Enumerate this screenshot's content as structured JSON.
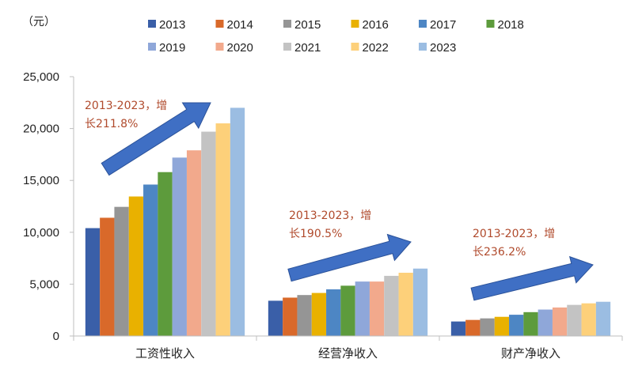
{
  "chart_data": {
    "type": "bar",
    "unit_label": "（元）",
    "categories": [
      "工资性收入",
      "经营净收入",
      "财产净收入"
    ],
    "series": [
      {
        "name": "2013",
        "color": "#3a5fa8",
        "values": [
          10400,
          3400,
          1400
        ]
      },
      {
        "name": "2014",
        "color": "#d9692a",
        "values": [
          11400,
          3700,
          1550
        ]
      },
      {
        "name": "2015",
        "color": "#959595",
        "values": [
          12450,
          3950,
          1700
        ]
      },
      {
        "name": "2016",
        "color": "#e9b100",
        "values": [
          13450,
          4150,
          1850
        ]
      },
      {
        "name": "2017",
        "color": "#4d86c4",
        "values": [
          14600,
          4500,
          2050
        ]
      },
      {
        "name": "2018",
        "color": "#5d9b3c",
        "values": [
          15800,
          4850,
          2300
        ]
      },
      {
        "name": "2019",
        "color": "#8fa7d9",
        "values": [
          17200,
          5250,
          2550
        ]
      },
      {
        "name": "2020",
        "color": "#f2a98c",
        "values": [
          17900,
          5250,
          2750
        ]
      },
      {
        "name": "2021",
        "color": "#c3c3c3",
        "values": [
          19700,
          5800,
          3000
        ]
      },
      {
        "name": "2022",
        "color": "#fdd07a",
        "values": [
          20500,
          6100,
          3150
        ]
      },
      {
        "name": "2023",
        "color": "#9bbde2",
        "values": [
          22000,
          6500,
          3300
        ]
      }
    ],
    "ylim": [
      0,
      25000
    ],
    "yticks": [
      "0",
      "5,000",
      "10,000",
      "15,000",
      "20,000",
      "25,000"
    ],
    "ytick_values": [
      0,
      5000,
      10000,
      15000,
      20000,
      25000
    ],
    "grid": false,
    "legend_position": "top",
    "annotations": [
      {
        "line1": "2013-2023，增",
        "line2": "长211.8%"
      },
      {
        "line1": "2013-2023，增",
        "line2": "长190.5%"
      },
      {
        "line1": "2013-2023，增",
        "line2": "长236.2%"
      }
    ],
    "arrow_color": "#3f6fc4"
  }
}
